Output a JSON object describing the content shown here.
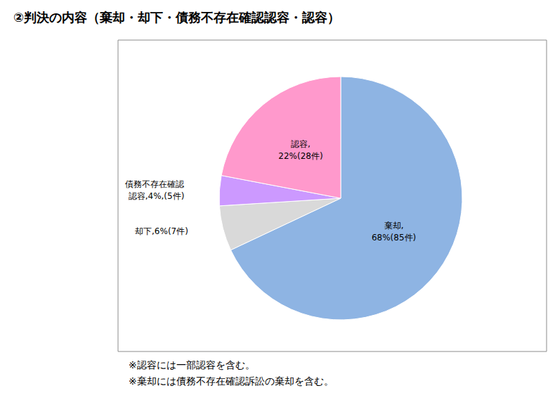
{
  "chart_data": {
    "type": "pie",
    "title": "②判決の内容（棄却・却下・債務不存在確認認容・認容）",
    "categories": [
      "棄却",
      "却下",
      "債務不存在確認認容",
      "認容"
    ],
    "values": [
      68,
      6,
      4,
      22
    ],
    "value_labels": [
      "棄却,\n68%(85件)",
      "却下,6%(7件)",
      "債務不存在確認\n認容,4%,(5件)",
      "認容,\n22%(28件)"
    ],
    "colors": [
      "#8EB4E3",
      "#D9D9D9",
      "#CC99FF",
      "#FF99CC"
    ],
    "data_labels": true,
    "annotations": [
      "※認容には一部認容を含む。",
      "※棄却には債務不存在確認訴訟の棄却を含む。"
    ]
  }
}
